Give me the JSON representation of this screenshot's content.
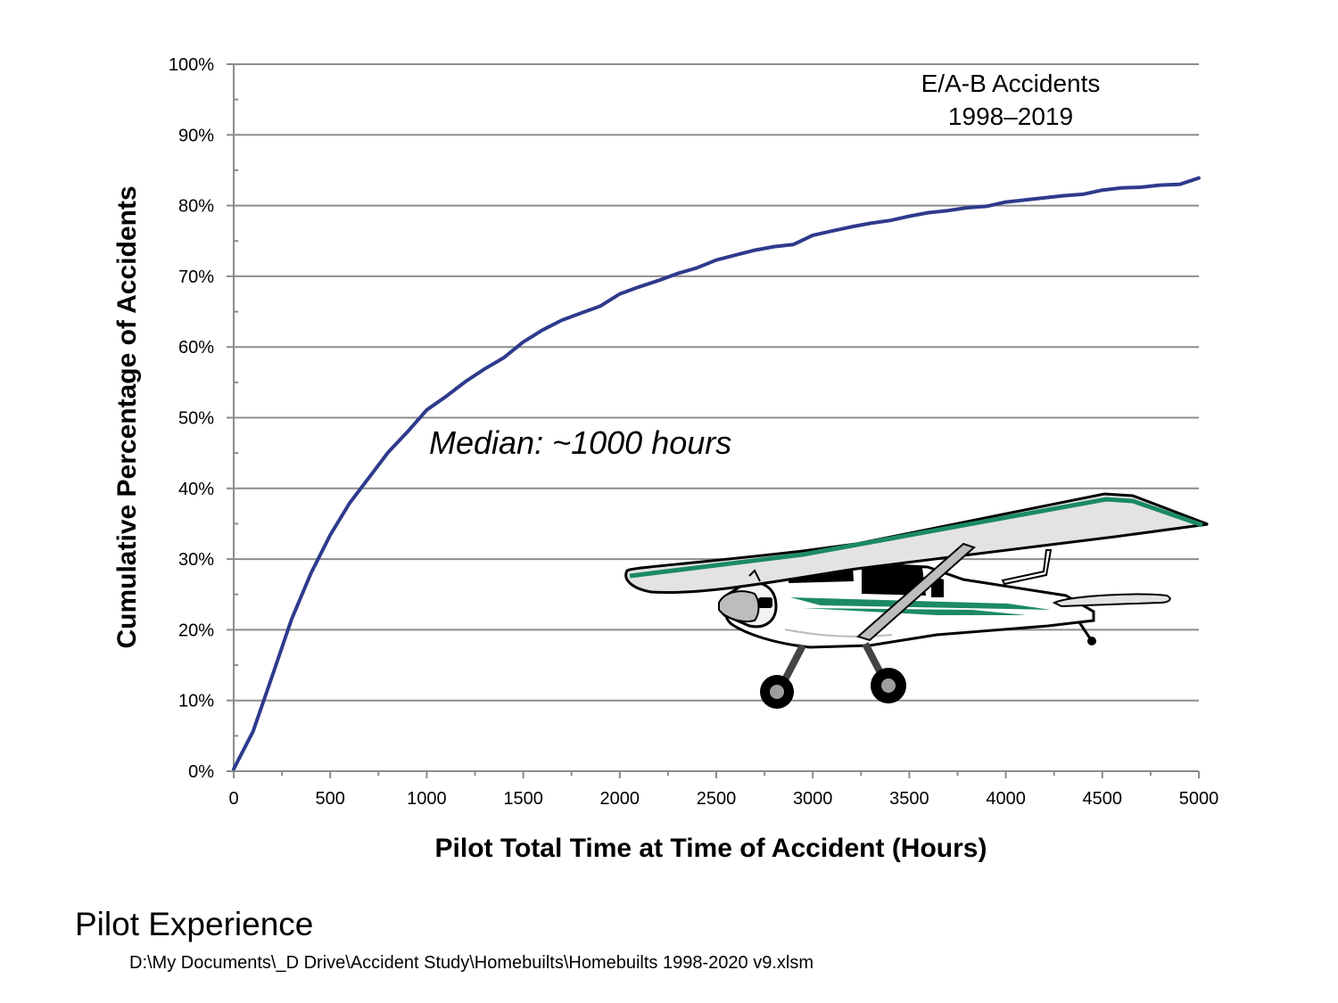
{
  "chart_data": {
    "type": "line",
    "xlabel": "Pilot Total Time at Time of Accident (Hours)",
    "ylabel": "Cumulative Percentage of Accidents",
    "xlim": [
      0,
      5000
    ],
    "ylim": [
      0,
      100
    ],
    "x_ticks": [
      "0",
      "500",
      "1000",
      "1500",
      "2000",
      "2500",
      "3000",
      "3500",
      "4000",
      "4500",
      "5000"
    ],
    "y_ticks": [
      "0%",
      "10%",
      "20%",
      "30%",
      "40%",
      "50%",
      "60%",
      "70%",
      "80%",
      "90%",
      "100%"
    ],
    "grid": true,
    "legend": "none",
    "line_color": "#2e3a8c",
    "series": [
      {
        "x": [
          0,
          100,
          200,
          300,
          400,
          500,
          600,
          700,
          800,
          900,
          1000,
          1100,
          1200,
          1300,
          1400,
          1500,
          1600,
          1700,
          1800,
          1900,
          2000,
          2100,
          2200,
          2300,
          2400,
          2500,
          2600,
          2700,
          2800,
          2900,
          3000,
          3100,
          3200,
          3300,
          3400,
          3500,
          3600,
          3700,
          3800,
          3900,
          4000,
          4100,
          4200,
          4300,
          4400,
          4500,
          4600,
          4700,
          4800,
          4900,
          5000
        ],
        "values": [
          0.3,
          5.6,
          13.5,
          21.5,
          28.0,
          33.4,
          37.9,
          41.5,
          45.1,
          48.0,
          51.1,
          53.0,
          55.1,
          56.9,
          58.5,
          60.7,
          62.4,
          63.8,
          64.8,
          65.8,
          67.5,
          68.5,
          69.4,
          70.4,
          71.2,
          72.3,
          73.0,
          73.7,
          74.2,
          74.5,
          75.8,
          76.4,
          77.0,
          77.5,
          77.9,
          78.5,
          79.0,
          79.3,
          79.7,
          79.9,
          80.5,
          80.8,
          81.1,
          81.4,
          81.6,
          82.2,
          82.5,
          82.6,
          82.9,
          83.0,
          83.9
        ]
      }
    ],
    "annotations": [
      "E/A-B Accidents",
      "1998–2019",
      "Median: ~1000 hours"
    ]
  },
  "footer": {
    "title": "Pilot Experience",
    "path": "D:\\My Documents\\_D Drive\\Accident Study\\Homebuilts\\Homebuilts 1998-2020 v9.xlsm"
  },
  "illustration": {
    "icon": "airplane-icon"
  }
}
